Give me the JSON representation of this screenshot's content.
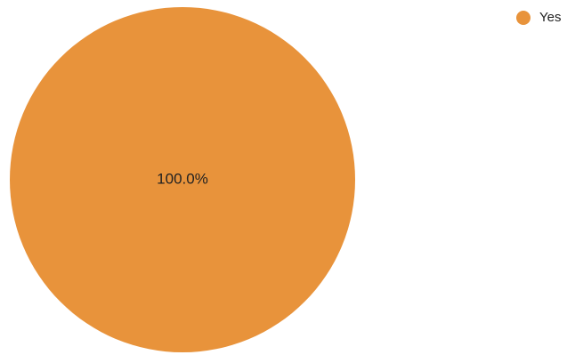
{
  "chart_data": {
    "type": "pie",
    "categories": [
      "Yes"
    ],
    "values": [
      100
    ],
    "labels": [
      "100.0%"
    ],
    "colors": [
      "#E8933B"
    ],
    "legend_position": "top-right"
  }
}
